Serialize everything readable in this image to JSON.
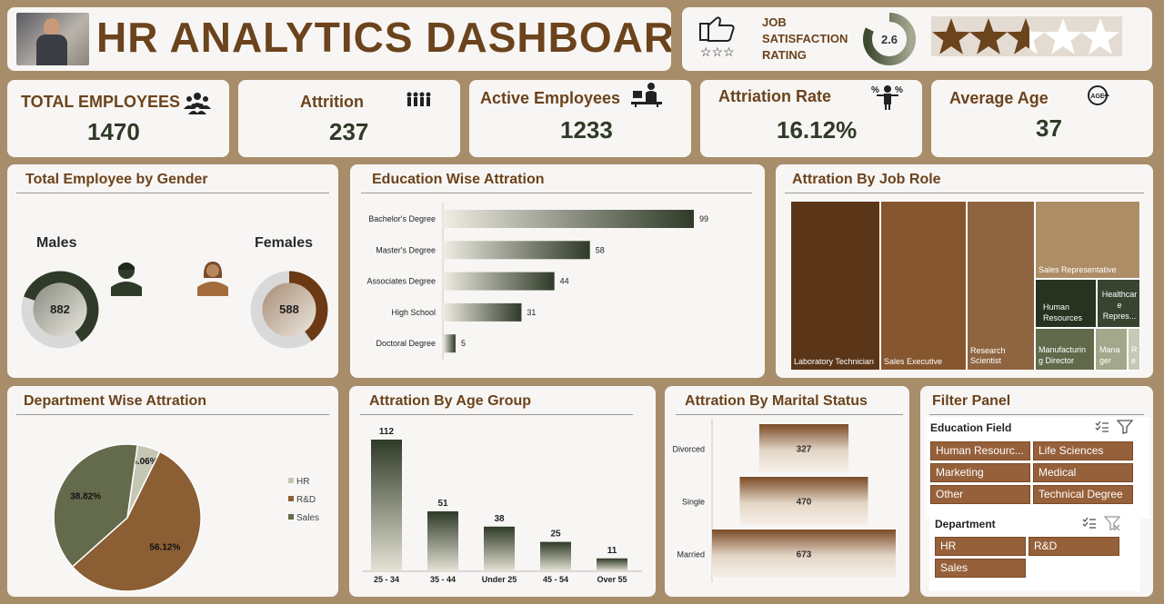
{
  "header": {
    "title": "HR ANALYTICS DASHBOARD"
  },
  "satisfaction": {
    "label_line1": "JOB",
    "label_line2": "SATISFACTION",
    "label_line3": "RATING",
    "value": "2.6",
    "stars_filled": 2.6,
    "stars_total": 5
  },
  "kpis": [
    {
      "label": "TOTAL EMPLOYEES",
      "value": "1470",
      "icon": "people-group-icon"
    },
    {
      "label": "Attrition",
      "value": "237",
      "icon": "people-leaving-icon"
    },
    {
      "label": "Active Employees",
      "value": "1233",
      "icon": "employee-desk-icon"
    },
    {
      "label": "Attriation Rate",
      "value": "16.12%",
      "icon": "percent-person-icon"
    },
    {
      "label": "Average Age",
      "value": "37",
      "icon": "age-icon"
    }
  ],
  "gender": {
    "title": "Total Employee by Gender",
    "males_label": "Males",
    "males_value": "882",
    "females_label": "Females",
    "females_value": "588",
    "total": 1470
  },
  "education": {
    "title": "Education Wise Attration"
  },
  "jobrole": {
    "title": "Attration By Job Role",
    "labels": {
      "lab_tech": "Laboratory Technician",
      "sales_exec": "Sales Executive",
      "research_sci_1": "Research",
      "research_sci_2": "Scientist",
      "sales_rep": "Sales Representative",
      "hr_1": "Human",
      "hr_2": "Resources",
      "health_1": "Healthcar",
      "health_2": "e",
      "health_3": "Repres...",
      "mfg_1": "Manufacturin",
      "mfg_2": "g Director",
      "mgr_1": "Mana",
      "mgr_2": "ger",
      "re_1": "R",
      "re_2": "e"
    }
  },
  "department": {
    "title": "Department Wise Attration"
  },
  "agegroup": {
    "title": "Attration By Age Group"
  },
  "marital": {
    "title": "Attration By Marital Status"
  },
  "filter": {
    "title": "Filter Panel",
    "education_field_label": "Education Field",
    "education_fields": [
      "Human Resourc...",
      "Life Sciences",
      "Marketing",
      "Medical",
      "Other",
      "Technical Degree"
    ],
    "department_label": "Department",
    "departments": [
      "HR",
      "R&D",
      "Sales"
    ]
  },
  "colors": {
    "background": "#a88d6a",
    "card": "#f8f6f4",
    "brown": "#6b431c",
    "dark_olive": "#2f3a28",
    "hr": "#c6c6b4",
    "rd": "#8b5e34",
    "sales": "#646b4c"
  },
  "chart_data": [
    {
      "type": "bar",
      "orientation": "horizontal",
      "categories": [
        "Bachelor's Degree",
        "Master's Degree",
        "Associates Degree",
        "High School",
        "Doctoral Degree"
      ],
      "values": [
        99,
        58,
        44,
        31,
        5
      ],
      "title": "Education Wise Attration"
    },
    {
      "type": "pie",
      "categories": [
        "HR",
        "R&D",
        "Sales"
      ],
      "values": [
        5.06,
        56.12,
        38.82
      ],
      "value_labels": [
        "5.06%",
        "56.12%",
        "38.82%"
      ],
      "title": "Department Wise Attration",
      "legend": "right"
    },
    {
      "type": "bar",
      "categories": [
        "25 - 34",
        "35 - 44",
        "Under 25",
        "45 - 54",
        "Over 55"
      ],
      "values": [
        112,
        51,
        38,
        25,
        11
      ],
      "title": "Attration By Age Group"
    },
    {
      "type": "bar",
      "orientation": "horizontal",
      "categories": [
        "Divorced",
        "Single",
        "Married"
      ],
      "values": [
        327,
        470,
        673
      ],
      "title": "Attration By Marital Status"
    },
    {
      "type": "pie",
      "categories": [
        "Males",
        "Females"
      ],
      "values": [
        882,
        588
      ],
      "title": "Total Employee by Gender"
    }
  ]
}
